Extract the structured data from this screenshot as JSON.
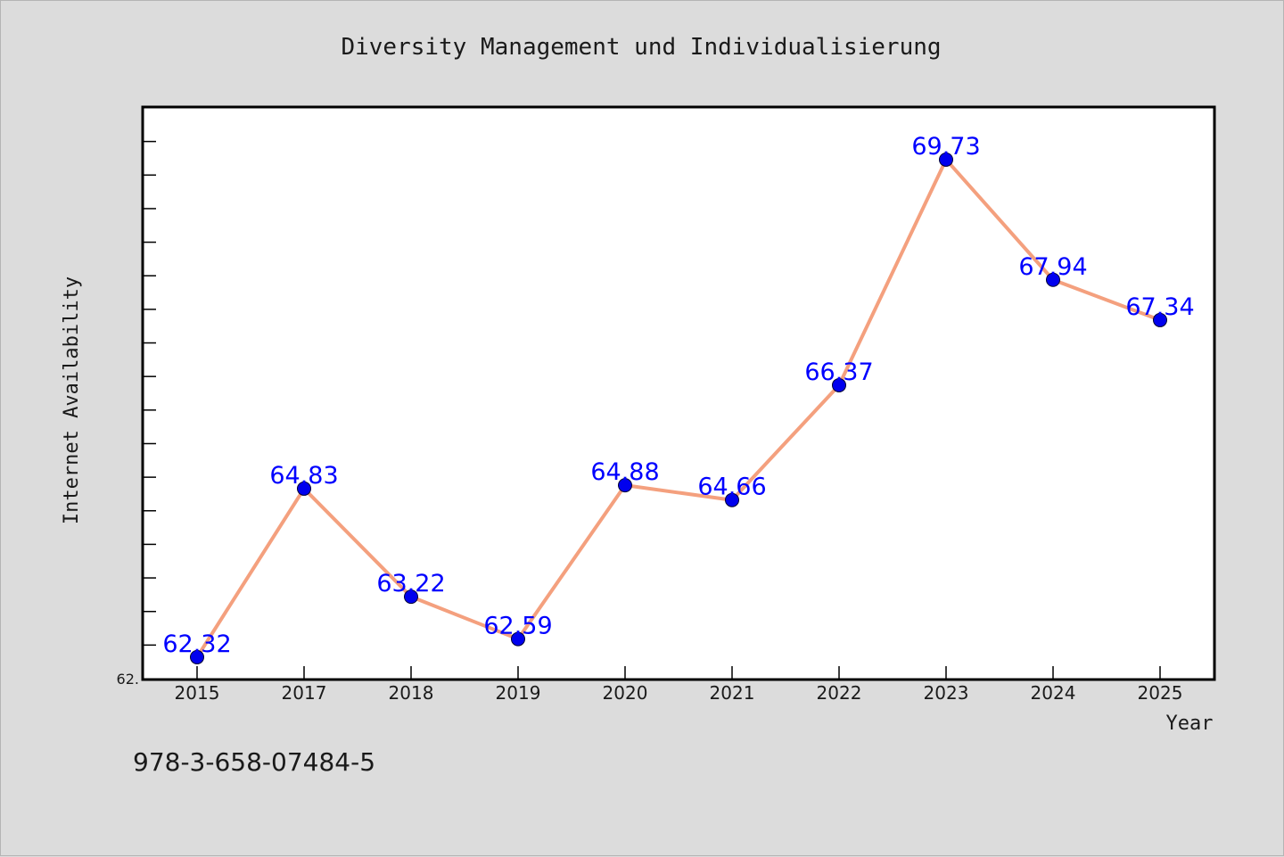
{
  "footer_text": "978-3-658-07484-5",
  "colors": {
    "background": "#dcdcdc",
    "plot_background": "#ffffff",
    "line": "#f4a07e",
    "marker": "#0000ee",
    "data_label": "#0000ff",
    "text": "#1a1a1a"
  },
  "chart_data": {
    "type": "line",
    "title": "Diversity Management und Individualisierung",
    "xlabel": "Year",
    "ylabel": "Internet Availability",
    "categories": [
      "2015",
      "2017",
      "2018",
      "2019",
      "2020",
      "2021",
      "2022",
      "2023",
      "2024",
      "2025"
    ],
    "series": [
      {
        "values": [
          62.32,
          64.83,
          63.22,
          62.59,
          64.88,
          64.66,
          66.37,
          69.73,
          67.94,
          67.34
        ],
        "labels": [
          "62.32",
          "64.83",
          "63.22",
          "62.59",
          "64.88",
          "64.66",
          "66.37",
          "69.73",
          "67.94",
          "67.34"
        ]
      }
    ],
    "ylim": [
      62.0,
      70.5
    ],
    "y_tick_label": "62.",
    "minor_y_tick_step": 0.5,
    "grid": false,
    "legend": "none",
    "marker": "circle"
  }
}
